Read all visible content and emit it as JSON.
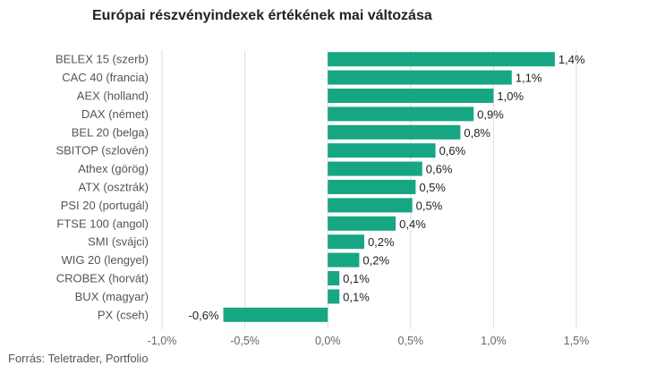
{
  "chart_data": {
    "type": "bar",
    "orientation": "horizontal",
    "title": "Európai részvényindexek értékének mai változása",
    "source": "Forrás: Teletrader, Portfolio",
    "categories": [
      "BELEX 15 (szerb)",
      "CAC 40 (francia)",
      "AEX (holland)",
      "DAX (német)",
      "BEL 20 (belga)",
      "SBITOP (szlovén)",
      "Athex (görög)",
      "ATX (osztrák)",
      "PSI 20 (portugál)",
      "FTSE 100 (angol)",
      "SMI (svájci)",
      "WIG 20 (lengyel)",
      "CROBEX (horvát)",
      "BUX (magyar)",
      "PX (cseh)"
    ],
    "values": [
      1.37,
      1.11,
      1.0,
      0.88,
      0.8,
      0.65,
      0.57,
      0.53,
      0.51,
      0.41,
      0.22,
      0.19,
      0.07,
      0.07,
      -0.63
    ],
    "value_labels": [
      "1,4%",
      "1,1%",
      "1,0%",
      "0,9%",
      "0,8%",
      "0,6%",
      "0,6%",
      "0,5%",
      "0,5%",
      "0,4%",
      "0,2%",
      "0,2%",
      "0,1%",
      "0,1%",
      "-0,6%"
    ],
    "xlim": [
      -1.0,
      1.5
    ],
    "xticks": [
      -1.0,
      -0.5,
      0.0,
      0.5,
      1.0,
      1.5
    ],
    "xtick_labels": [
      "-1,0%",
      "-0,5%",
      "0,0%",
      "0,5%",
      "1,0%",
      "1,5%"
    ],
    "bar_color": "#17a683",
    "grid": "vertical"
  }
}
